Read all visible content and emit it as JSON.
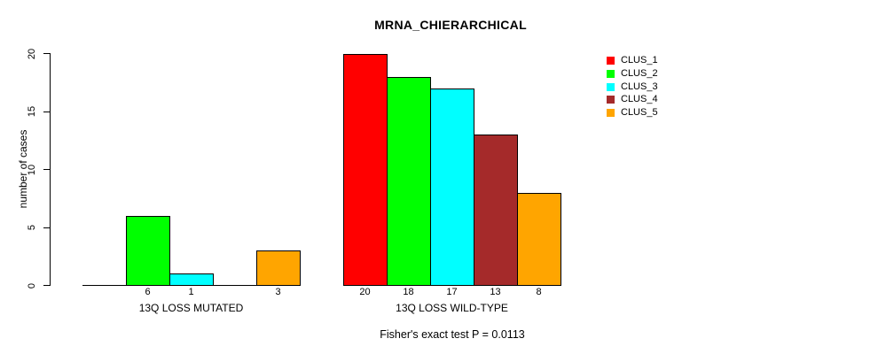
{
  "chart_data": {
    "type": "bar",
    "title": "MRNA_CHIERARCHICAL",
    "ylabel": "number of cases",
    "xlabel": "",
    "ylim": [
      0,
      20
    ],
    "yticks": [
      0,
      5,
      10,
      15,
      20
    ],
    "grid": false,
    "legend_position": "right",
    "series": [
      "CLUS_1",
      "CLUS_2",
      "CLUS_3",
      "CLUS_4",
      "CLUS_5"
    ],
    "colors": [
      "#FF0000",
      "#00FF00",
      "#00FFFF",
      "#A52A2A",
      "#FFA500"
    ],
    "groups": [
      {
        "label": "13Q LOSS MUTATED",
        "values": [
          0,
          6,
          1,
          0,
          3
        ],
        "bar_labels": [
          "",
          "6",
          "1",
          "",
          "3"
        ]
      },
      {
        "label": "13Q LOSS WILD-TYPE",
        "values": [
          20,
          18,
          17,
          13,
          8
        ],
        "bar_labels": [
          "20",
          "18",
          "17",
          "13",
          "8"
        ]
      }
    ],
    "annotation": "Fisher's exact test P = 0.0113"
  }
}
